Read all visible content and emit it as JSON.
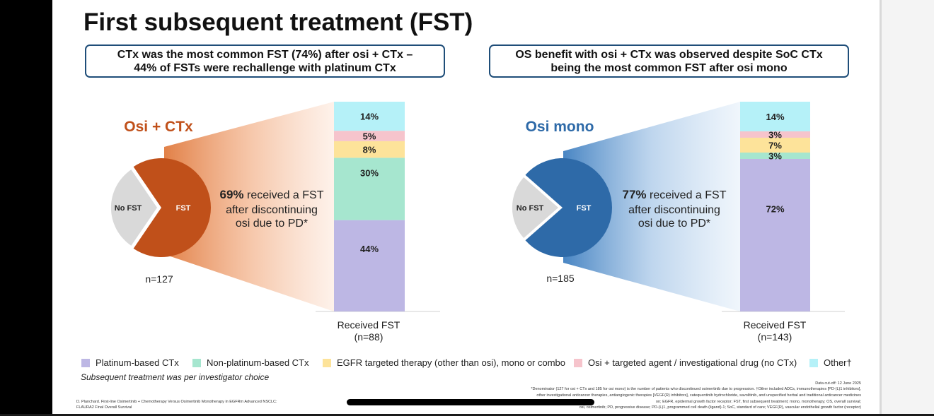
{
  "title": "First subsequent treatment (FST)",
  "callouts": {
    "left_line1": "CTx was the most common FST (74%) after osi + CTx –",
    "left_line2": "44% of FSTs were rechallenge with platinum CTx",
    "right_line1": "OS benefit with osi + CTx was observed despite SoC CTx",
    "right_line2": "being the most common FST after osi mono"
  },
  "colors": {
    "osi_ctx": "#c0501a",
    "osi_mono": "#2e6aa8",
    "no_fst": "#d9d9d9",
    "platinum": "#bdb7e4",
    "non_platinum": "#a6e6cf",
    "egfr": "#fde39a",
    "osi_targeted": "#f6c4cc",
    "other": "#b5f1f8"
  },
  "chart_data": [
    {
      "type": "pie",
      "title": "Osi + CTx",
      "n_label": "n=127",
      "categories": [
        "No FST",
        "FST"
      ],
      "values": [
        31,
        69
      ],
      "annotation_pct": "69%",
      "annotation_line1": " received a FST",
      "annotation_line2": "after discontinuing",
      "annotation_line3": "osi due to PD*"
    },
    {
      "type": "bar",
      "stacked": true,
      "xlabel_line1": "Received FST",
      "xlabel_line2": "(n=88)",
      "categories": [
        "Platinum-based CTx",
        "Non-platinum-based CTx",
        "EGFR targeted therapy (other than osi), mono or combo",
        "Osi + targeted agent / investigational drug (no CTx)",
        "Other†"
      ],
      "values": [
        44,
        30,
        8,
        5,
        14
      ],
      "labels": [
        "44%",
        "30%",
        "8%",
        "5%",
        "14%"
      ]
    },
    {
      "type": "pie",
      "title": "Osi mono",
      "n_label": "n=185",
      "categories": [
        "No FST",
        "FST"
      ],
      "values": [
        23,
        77
      ],
      "annotation_pct": "77%",
      "annotation_line1": " received a FST",
      "annotation_line2": "after discontinuing",
      "annotation_line3": "osi due to PD*"
    },
    {
      "type": "bar",
      "stacked": true,
      "xlabel_line1": "Received FST",
      "xlabel_line2": "(n=143)",
      "categories": [
        "Platinum-based CTx",
        "Non-platinum-based CTx",
        "EGFR targeted therapy (other than osi), mono or combo",
        "Osi + targeted agent / investigational drug (no CTx)",
        "Other†"
      ],
      "values": [
        72,
        3,
        7,
        3,
        14
      ],
      "labels": [
        "72%",
        "3%",
        "7%",
        "3%",
        "14%"
      ]
    }
  ],
  "legend": [
    {
      "label": "Platinum-based CTx",
      "color": "#bdb7e4"
    },
    {
      "label": "Non-platinum-based CTx",
      "color": "#a6e6cf"
    },
    {
      "label": "EGFR targeted therapy (other than osi), mono or combo",
      "color": "#fde39a"
    },
    {
      "label": "Osi + targeted agent / investigational drug (no CTx)",
      "color": "#f6c4cc"
    },
    {
      "label": "Other†",
      "color": "#b5f1f8"
    }
  ],
  "note": "Subsequent treatment was per investigator choice",
  "footer": {
    "data_cutoff": "Data cut-off: 12 June 2025",
    "denominator_line1": "*Denominator (127 for osi + CTx and 185 for osi mono) is the number of patients who discontinued osimertinib due to progression. †Other included ADCs, immunotherapies [PD-(L)1 inhibitors],",
    "denominator_line2": "other investigational anticancer therapies, antiangiogenic therapies [VEGF(R) inhibitors], catequentinib hydrochloride, savolitinib, and unspecified herbal and traditional anticancer medicines",
    "abbrev_line1": "on; EGFR, epidermal growth factor receptor; FST, first subsequent treatment; mono, monotherapy; OS, overall survival;",
    "abbrev_line2": "osi, osimertinib; PD, progressive disease; PD-(L)1, programmed cell death (ligand)-1; SoC, standard of care; VEGF(R), vascular endothelial growth factor (receptor)",
    "citation_line1": "D. Planchard. First-line Osimertinib + Chemotherapy Versus Osimertinib Monotherapy in EGFRm Advanced NSCLC:",
    "citation_line2": "FLAURA2 Final Overall Survival"
  }
}
